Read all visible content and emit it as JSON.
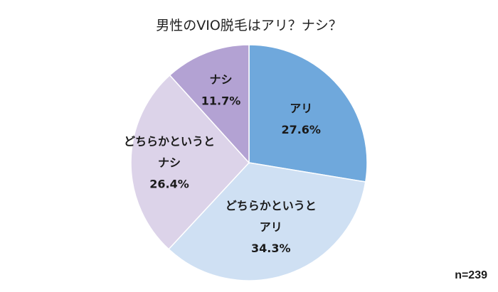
{
  "chart_data": {
    "type": "pie",
    "title": "男性のVIO脱毛はアリ？ナシ？",
    "note": "n=239",
    "start": "12 o'clock",
    "direction": "clockwise",
    "slices": [
      {
        "label_lines": [
          "アリ"
        ],
        "value": 27.6,
        "value_text": "27.6%",
        "color": "#6fa8dc"
      },
      {
        "label_lines": [
          "どちらかというと",
          "アリ"
        ],
        "value": 34.3,
        "value_text": "34.3%",
        "color": "#cfe0f3"
      },
      {
        "label_lines": [
          "どちらかというと",
          "ナシ"
        ],
        "value": 26.4,
        "value_text": "26.4%",
        "color": "#dcd3e9"
      },
      {
        "label_lines": [
          "ナシ"
        ],
        "value": 11.7,
        "value_text": "11.7%",
        "color": "#b3a2d3"
      }
    ]
  }
}
